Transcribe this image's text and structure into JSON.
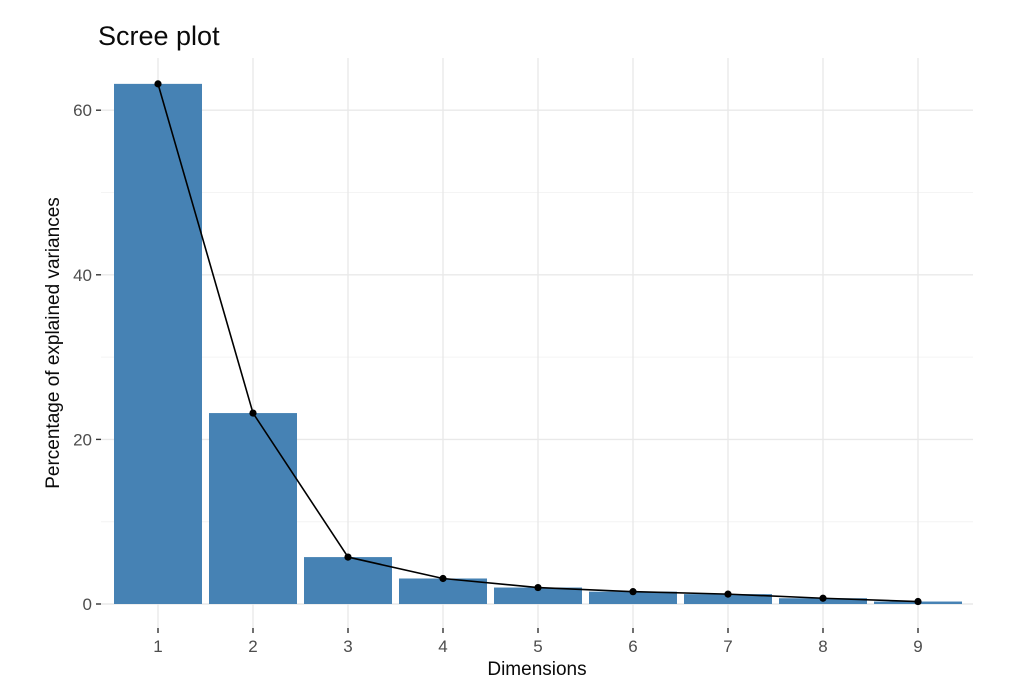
{
  "figure": {
    "background": "#ffffff",
    "description": "Scree plot of PCA: percentage of explained variance per dimension, bars with connected point-line overlay"
  },
  "chart_data": {
    "type": "bar",
    "subtype": "scree-plot-bar-with-line-overlay",
    "title": "Scree plot",
    "xlabel": "Dimensions",
    "ylabel": "Percentage of explained variances",
    "categories": [
      "1",
      "2",
      "3",
      "4",
      "5",
      "6",
      "7",
      "8",
      "9"
    ],
    "values": [
      63.2,
      23.2,
      5.7,
      3.1,
      2.0,
      1.5,
      1.2,
      0.7,
      0.3
    ],
    "series": [
      {
        "name": "explained-variance-bars",
        "type": "bar",
        "values": [
          63.2,
          23.2,
          5.7,
          3.1,
          2.0,
          1.5,
          1.2,
          0.7,
          0.3
        ]
      },
      {
        "name": "explained-variance-line",
        "type": "line-with-points",
        "values": [
          63.2,
          23.2,
          5.7,
          3.1,
          2.0,
          1.5,
          1.2,
          0.7,
          0.3
        ]
      }
    ],
    "y_ticks": [
      0,
      20,
      40,
      60
    ],
    "y_ticks_minor": [
      10,
      30,
      50
    ],
    "ylim": [
      0,
      66.4
    ],
    "grid": true,
    "legend": "none",
    "colors": {
      "bar_fill": "#4682B4",
      "line": "#000000",
      "point": "#000000",
      "grid_major": "#E9E9E9",
      "grid_minor": "#F4F4F4",
      "tick_mark": "#333333",
      "tick_text": "#4D4D4D",
      "axis_title_text": "#0A0A0A",
      "title_text": "#0A0A0A",
      "panel_background": "#FFFFFF"
    }
  }
}
